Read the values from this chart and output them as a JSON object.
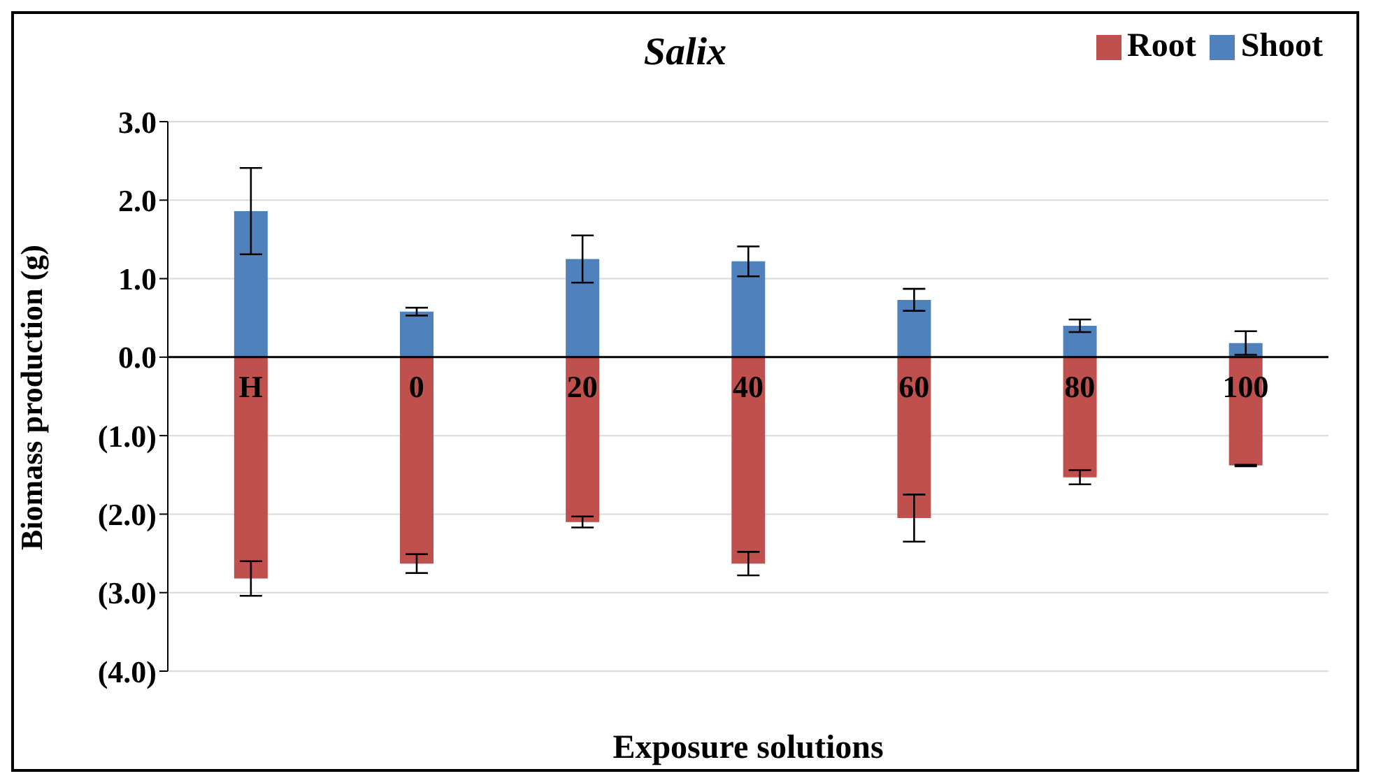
{
  "chart_data": {
    "type": "bar",
    "title": "Salix",
    "xlabel": "Exposure solutions",
    "ylabel": "Biomass production (g)",
    "categories": [
      "H",
      "0",
      "20",
      "40",
      "60",
      "80",
      "100"
    ],
    "stacked": true,
    "series": [
      {
        "name": "Root",
        "color": "#c0504d",
        "values": [
          -2.82,
          -2.63,
          -2.1,
          -2.63,
          -2.05,
          -1.53,
          -1.38
        ],
        "errors": [
          0.22,
          0.12,
          0.07,
          0.15,
          0.3,
          0.09,
          0.01
        ]
      },
      {
        "name": "Shoot",
        "color": "#4f81bd",
        "values": [
          1.86,
          0.58,
          1.25,
          1.22,
          0.73,
          0.4,
          0.18
        ],
        "errors": [
          0.55,
          0.05,
          0.3,
          0.19,
          0.14,
          0.08,
          0.15
        ]
      }
    ],
    "ylim": [
      -4,
      3
    ],
    "yticks": [
      {
        "value": -4,
        "label": "(4.0)"
      },
      {
        "value": -3,
        "label": "(3.0)"
      },
      {
        "value": -2,
        "label": "(2.0)"
      },
      {
        "value": -1,
        "label": "(1.0)"
      },
      {
        "value": 0,
        "label": "0.0"
      },
      {
        "value": 1,
        "label": "1.0"
      },
      {
        "value": 2,
        "label": "2.0"
      },
      {
        "value": 3,
        "label": "3.0"
      }
    ],
    "grid": "y",
    "legend": "top right"
  }
}
